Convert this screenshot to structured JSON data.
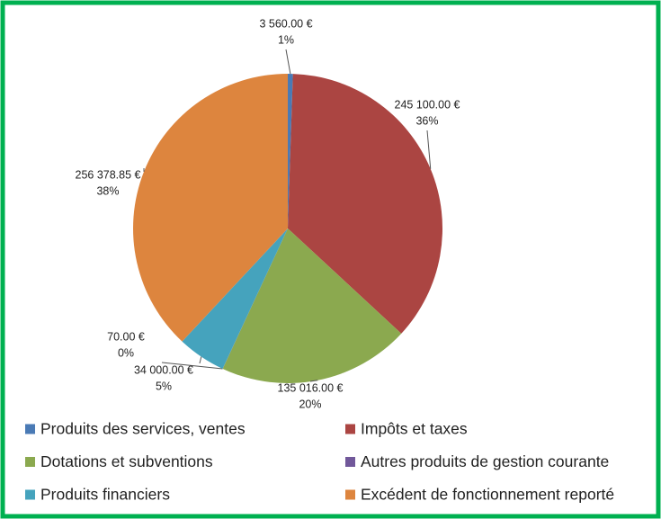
{
  "chart_data": {
    "type": "pie",
    "categories": [
      "Produits des services, ventes",
      "Impôts et taxes",
      "Dotations et subventions",
      "Autres produits de gestion courante",
      "Produits financiers",
      "Excédent de fonctionnement reporté"
    ],
    "values": [
      3560,
      245100,
      135016,
      70,
      34000,
      256378.85
    ],
    "value_labels": [
      "3 560.00 €",
      "245 100.00 €",
      "135 016.00 €",
      "70.00 €",
      "34 000.00 €",
      "256 378.85 €"
    ],
    "percent_labels": [
      "1%",
      "36%",
      "20%",
      "0%",
      "5%",
      "38%"
    ],
    "colors": [
      "#4a7ab5",
      "#ab4542",
      "#8ba94f",
      "#71589a",
      "#45a3bd",
      "#dd853e"
    ],
    "legend": "bottom"
  }
}
